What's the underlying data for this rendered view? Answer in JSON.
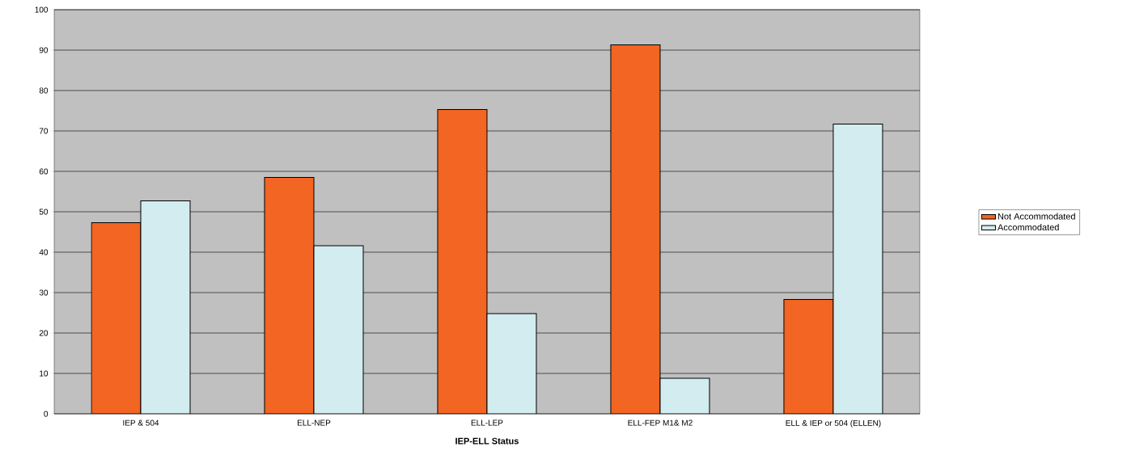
{
  "chart_data": {
    "type": "bar",
    "categories": [
      "IEP & 504",
      "ELL-NEP",
      "ELL-LEP",
      "ELL-FEP M1& M2",
      "ELL & IEP or 504 (ELLEN)"
    ],
    "xlabel": "IEP-ELL Status",
    "series": [
      {
        "name": "Not Accommodated",
        "color": "#f26522",
        "values": [
          47.3,
          58.5,
          75.3,
          91.3,
          28.3
        ]
      },
      {
        "name": "Accommodated",
        "color": "#d2ecf0",
        "values": [
          52.7,
          41.6,
          24.8,
          8.8,
          71.7
        ]
      }
    ],
    "ylim": [
      0,
      100
    ],
    "yticks": [
      0,
      10,
      20,
      30,
      40,
      50,
      60,
      70,
      80,
      90,
      100
    ],
    "grid": "y",
    "legend": "right"
  }
}
